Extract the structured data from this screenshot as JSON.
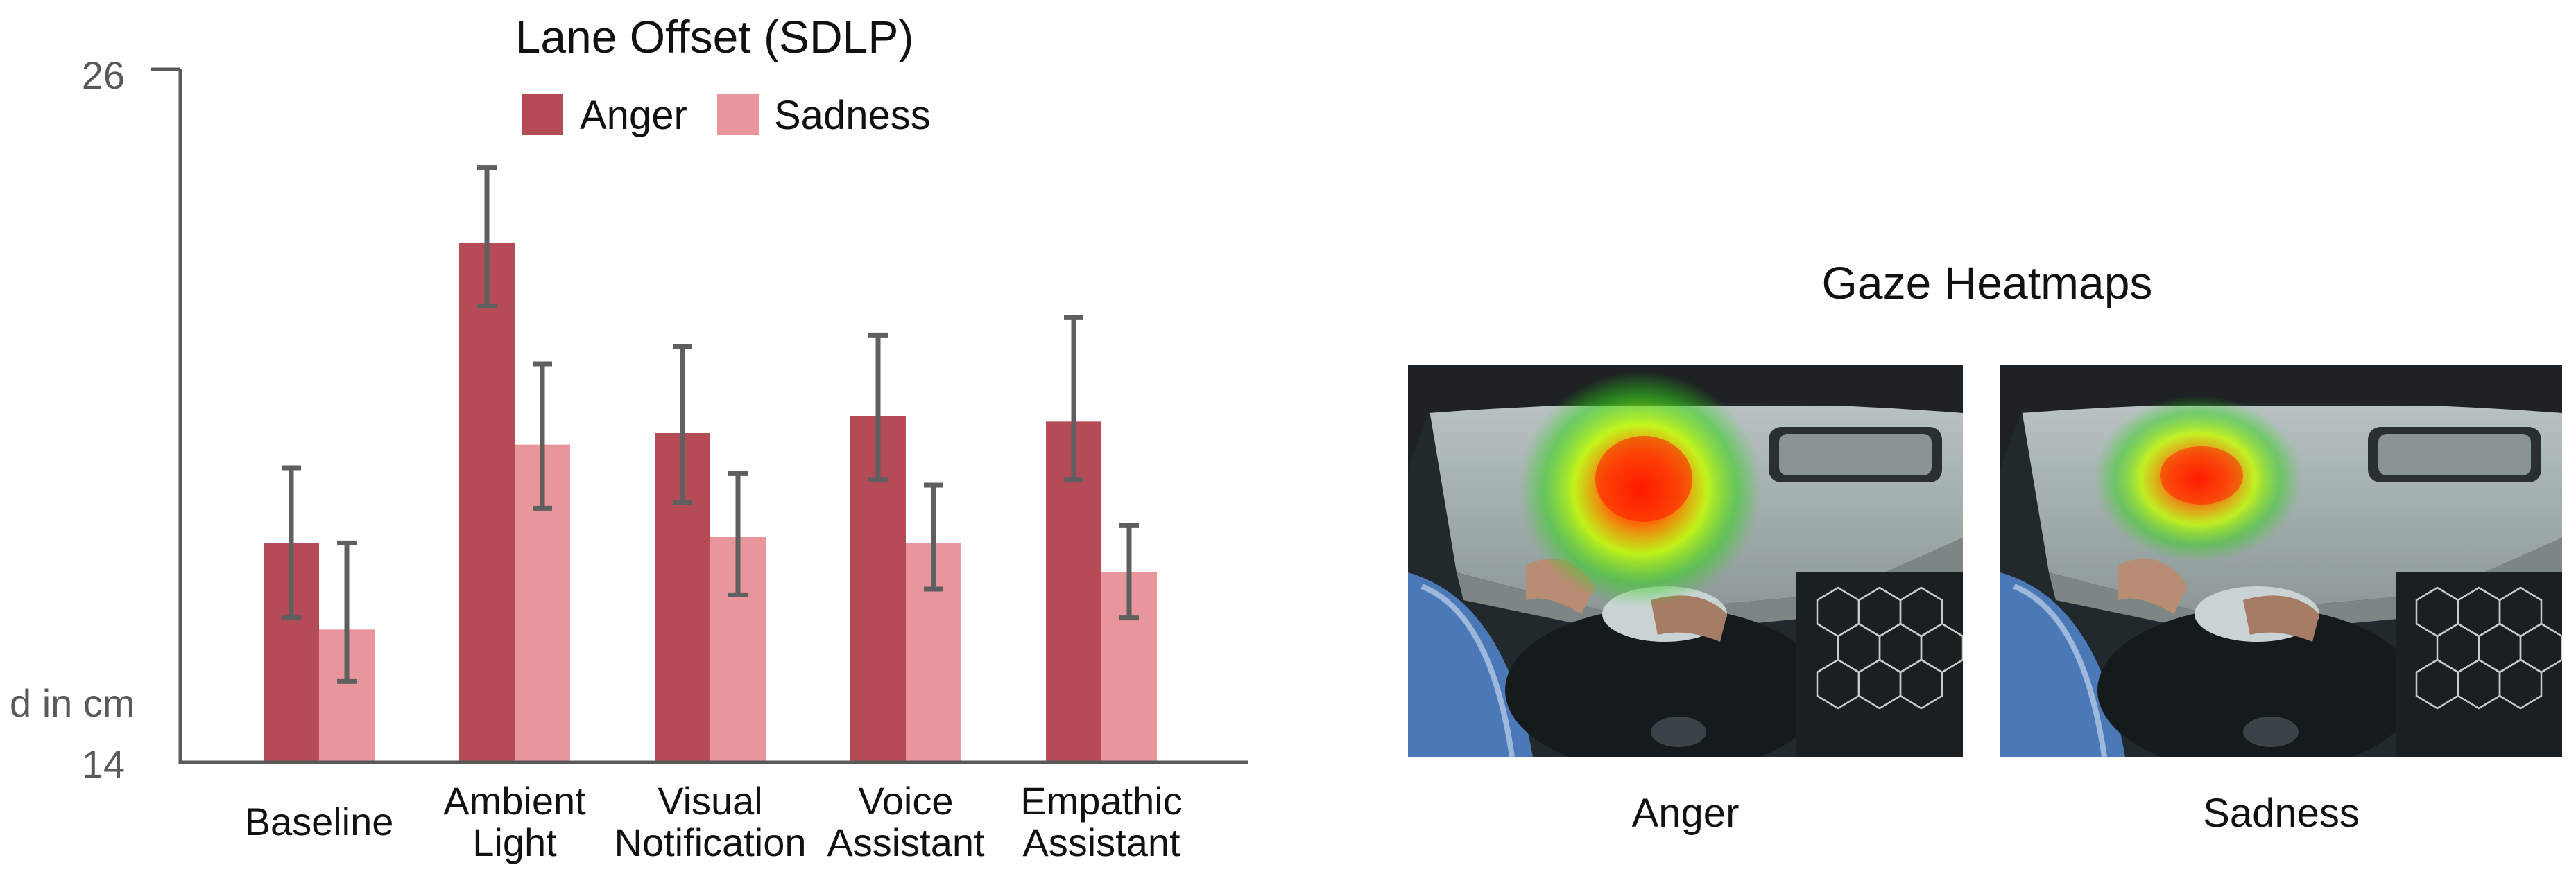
{
  "chart_data": {
    "type": "bar",
    "title": "Lane Offset (SDLP)",
    "ylabel": "d in cm",
    "ylim": [
      14,
      26
    ],
    "yticks": [
      14,
      26
    ],
    "categories": [
      [
        "Baseline"
      ],
      [
        "Ambient",
        "Light"
      ],
      [
        "Visual",
        "Notification"
      ],
      [
        "Voice",
        "Assistant"
      ],
      [
        "Empathic",
        "Assistant"
      ]
    ],
    "series": [
      {
        "name": "Anger",
        "color": "#b54b57",
        "values": [
          17.8,
          23.0,
          19.7,
          20.0,
          19.9
        ],
        "error_low": [
          16.5,
          21.9,
          18.5,
          18.9,
          18.9
        ],
        "error_high": [
          19.1,
          24.3,
          21.2,
          21.4,
          21.7
        ]
      },
      {
        "name": "Sadness",
        "color": "#e8959b",
        "values": [
          16.3,
          19.5,
          17.9,
          17.8,
          17.3
        ],
        "error_low": [
          15.4,
          18.4,
          16.9,
          17.0,
          16.5
        ],
        "error_high": [
          17.8,
          20.9,
          19.0,
          18.8,
          18.1
        ]
      }
    ],
    "legend_position": "top-center",
    "grid": false
  },
  "gaze": {
    "title": "Gaze Heatmaps",
    "panels": [
      {
        "label": "Anger",
        "icon": "driver-gaze-heatmap-image"
      },
      {
        "label": "Sadness",
        "icon": "driver-gaze-heatmap-image"
      }
    ]
  }
}
